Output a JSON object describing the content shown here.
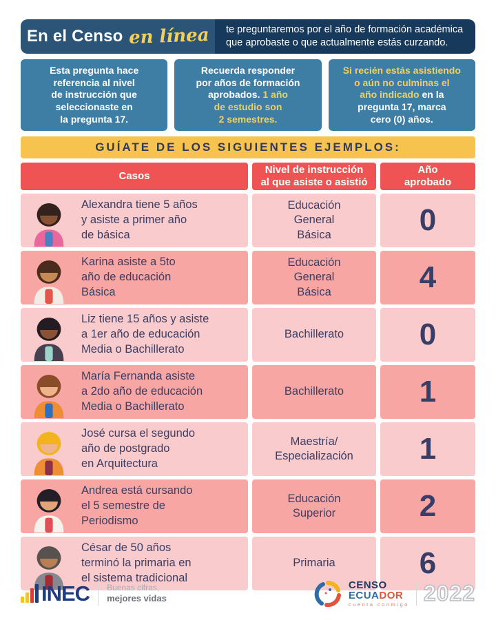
{
  "colors": {
    "header_left_navy": "#2c5476",
    "header_right_navy": "#17395c",
    "note_blue": "#3e7da4",
    "accent_yellow": "#f4cf5a",
    "banner_yellow": "#f6c34f",
    "table_header_red": "#f05353",
    "row_pink_light": "#f9cbcd",
    "row_pink_dark": "#f7a6a4",
    "text_navy": "#3c3e63"
  },
  "header": {
    "brand_main": "En el Censo",
    "brand_script": "en línea",
    "tagline": "te preguntaremos por el año de formación académica\nque aprobaste o que actualmente estás curzando."
  },
  "notes": [
    {
      "parts": [
        {
          "text": "Esta pregunta hace\nreferencia al nivel\nde instrucción que\nseleccionaste en\nla pregunta 17."
        }
      ]
    },
    {
      "parts": [
        {
          "text": "Recuerda responder\npor años de formación\naprobados. "
        },
        {
          "text": "1 año\nde estudio son\n2 semestres.",
          "accent": true
        }
      ]
    },
    {
      "parts": [
        {
          "text": "Si recién estás asistiendo\no aún no culminas el\naño indicado",
          "accent": true
        },
        {
          "text": " en la\npregunta 17, marca\ncero (0) años."
        }
      ]
    }
  ],
  "banner": "GUÍATE DE LOS SIGUIENTES EJEMPLOS:",
  "table": {
    "headers": [
      "Casos",
      "Nivel de instrucción\nal que asiste o asistió",
      "Año\naprobado"
    ],
    "rows": [
      {
        "avatar": "girl-arms-raised",
        "case": "Alexandra tiene 5 años\ny asiste a primer año\nde básica",
        "level": "Educación\nGeneral\nBásica",
        "years": "0",
        "colors": {
          "hair": "#33211d",
          "skin": "#8a5234",
          "shirt": "#e9679c",
          "accent": "#4e7fc4"
        }
      },
      {
        "avatar": "girl-waving-backpack",
        "case": "Karina asiste a 5to\naño de educación\nBásica",
        "level": "Educación\nGeneral\nBásica",
        "years": "4",
        "colors": {
          "hair": "#4a2b1e",
          "skin": "#c68a57",
          "shirt": "#f3ece4",
          "accent": "#e2574b"
        }
      },
      {
        "avatar": "woman-pointing",
        "case": "Liz tiene 15 años y asiste\na 1er año de educación\nMedia o Bachillerato",
        "level": "Bachillerato",
        "years": "0",
        "colors": {
          "hair": "#241c20",
          "skin": "#8a5234",
          "shirt": "#474050",
          "accent": "#9cd4c9"
        }
      },
      {
        "avatar": "girl-glasses-book",
        "case": "María Fernanda asiste\na 2do año de educación\nMedia o Bachillerato",
        "level": "Bachillerato",
        "years": "1",
        "colors": {
          "hair": "#8a4d2a",
          "skin": "#f0b48c",
          "shirt": "#ee8d33",
          "accent": "#2f6fbe"
        }
      },
      {
        "avatar": "man-hardhat-builder",
        "case": "José cursa el segundo\naño de postgrado\nen Arquitectura",
        "level": "Maestría/\nEspecialización",
        "years": "1",
        "colors": {
          "hair": "#f2b31c",
          "skin": "#f0b48c",
          "shirt": "#ef8f35",
          "accent": "#8f3049"
        }
      },
      {
        "avatar": "woman-microphone",
        "case": "Andrea está cursando\nel 5 semestre de\nPeriodismo",
        "level": "Educación\nSuperior",
        "years": "2",
        "colors": {
          "hair": "#241f26",
          "skin": "#e2a478",
          "shirt": "#f5f2ec",
          "accent": "#e04f55"
        }
      },
      {
        "avatar": "older-man-glasses-suit",
        "case": "César de 50 años\nterminó la primaria en\nel sistema tradicional",
        "level": "Primaria",
        "years": "6",
        "colors": {
          "hair": "#57514f",
          "skin": "#b97e53",
          "shirt": "#85888f",
          "accent": "#a32c35"
        }
      }
    ]
  },
  "footer": {
    "inec": {
      "icon": "bar-chart-logo",
      "name": "INEC",
      "slogan_line1": "Buenas cifras,",
      "slogan_line2": "mejores vidas"
    },
    "censo": {
      "icon": "census-swirl-logo",
      "line1": "CENSO",
      "line2_blue": "ECUA",
      "line2_red": "DOR",
      "line3": "cuenta conmigo",
      "year": "2022"
    }
  }
}
